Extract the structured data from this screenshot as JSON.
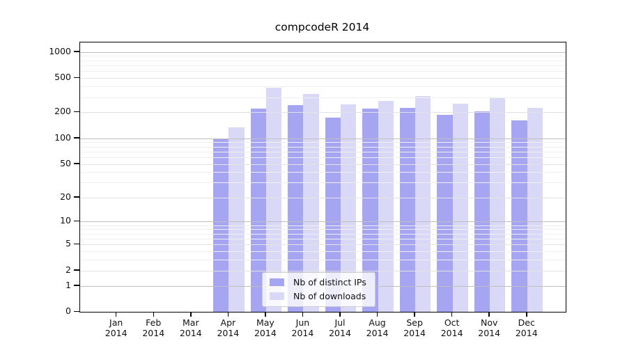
{
  "chart_data": {
    "type": "bar",
    "title": "compcodeR 2014",
    "year_label": "2014",
    "categories": [
      "Jan",
      "Feb",
      "Mar",
      "Apr",
      "May",
      "Jun",
      "Jul",
      "Aug",
      "Sep",
      "Oct",
      "Nov",
      "Dec"
    ],
    "series": [
      {
        "name": "Nb of distinct IPs",
        "color": "#a5a5f1",
        "values": [
          0,
          0,
          0,
          97,
          220,
          245,
          175,
          220,
          225,
          188,
          205,
          160
        ]
      },
      {
        "name": "Nb of downloads",
        "color": "#d9d9f7",
        "values": [
          0,
          0,
          0,
          135,
          390,
          330,
          248,
          270,
          310,
          250,
          295,
          225
        ]
      }
    ],
    "y_ticks": [
      0,
      1,
      2,
      5,
      10,
      20,
      50,
      100,
      200,
      500,
      1000
    ],
    "y_scale": "log1p",
    "ylim": [
      0,
      1290
    ],
    "grid": true,
    "legend_position": "bottom-center",
    "colors": {
      "grid_major": "#bfbfbf",
      "grid_mid": "#e3e3e3",
      "grid_minor": "#f0f0f0",
      "axis": "#000000",
      "text": "#111111"
    }
  }
}
